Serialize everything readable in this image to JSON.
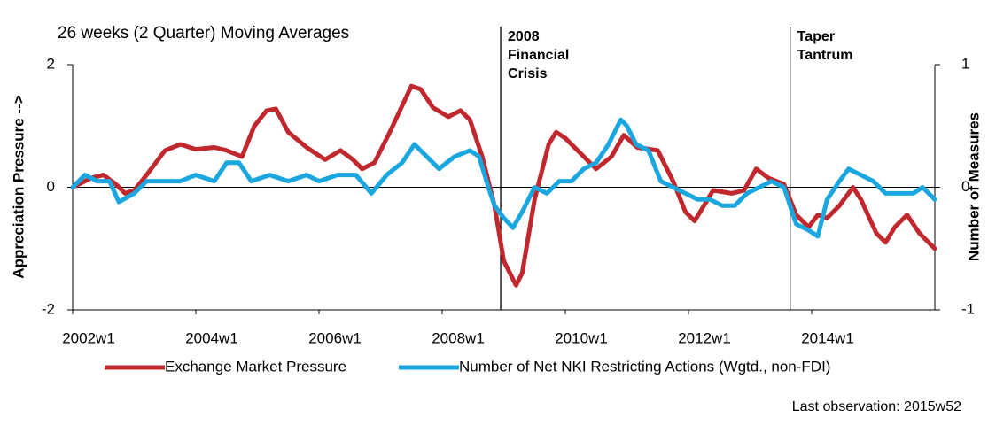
{
  "chart_data": {
    "type": "line",
    "title": "26 weeks (2 Quarter) Moving Averages",
    "y_label": "Appreciation Pressure -->",
    "y2_label": "Number of Measures",
    "note": "Last observation: 2015w52",
    "xlim": [
      2002,
      2016
    ],
    "xticks": [
      {
        "value": 2002,
        "label": "2002w1"
      },
      {
        "value": 2004,
        "label": "2004w1"
      },
      {
        "value": 2006,
        "label": "2006w1"
      },
      {
        "value": 2008,
        "label": "2008w1"
      },
      {
        "value": 2010,
        "label": "2010w1"
      },
      {
        "value": 2012,
        "label": "2012w1"
      },
      {
        "value": 2014,
        "label": "2014w1"
      }
    ],
    "ylim": [
      -2,
      2
    ],
    "yticks": [
      -2,
      0,
      2
    ],
    "y2lim": [
      -1,
      1
    ],
    "y2ticks": [
      -1,
      0,
      1
    ],
    "annotations": [
      {
        "x": 2008.95,
        "lines": [
          "2008",
          "Financial",
          "Crisis"
        ]
      },
      {
        "x": 2013.65,
        "lines": [
          "Taper",
          "Tantrum"
        ]
      }
    ],
    "series": [
      {
        "name": "Exchange Market Pressure",
        "color": "#c0282d",
        "x": [
          2002.0,
          2002.3,
          2002.5,
          2002.7,
          2002.85,
          2003.0,
          2003.2,
          2003.5,
          2003.75,
          2004.0,
          2004.3,
          2004.5,
          2004.75,
          2004.95,
          2005.15,
          2005.3,
          2005.5,
          2005.8,
          2006.1,
          2006.35,
          2006.55,
          2006.7,
          2006.9,
          2007.15,
          2007.5,
          2007.65,
          2007.85,
          2008.1,
          2008.3,
          2008.45,
          2008.65,
          2008.85,
          2009.0,
          2009.2,
          2009.3,
          2009.5,
          2009.73,
          2009.85,
          2010.0,
          2010.3,
          2010.5,
          2010.75,
          2010.95,
          2011.17,
          2011.5,
          2011.75,
          2011.95,
          2012.1,
          2012.25,
          2012.4,
          2012.7,
          2012.9,
          2013.1,
          2013.3,
          2013.55,
          2013.75,
          2013.95,
          2014.1,
          2014.25,
          2014.45,
          2014.67,
          2014.8,
          2015.05,
          2015.2,
          2015.35,
          2015.55,
          2015.75,
          2016.0
        ],
        "values": [
          0,
          0.15,
          0.2,
          0.05,
          -0.1,
          -0.05,
          0.2,
          0.6,
          0.7,
          0.62,
          0.65,
          0.6,
          0.5,
          1.0,
          1.25,
          1.28,
          0.9,
          0.65,
          0.45,
          0.6,
          0.45,
          0.3,
          0.4,
          0.9,
          1.65,
          1.6,
          1.3,
          1.15,
          1.25,
          1.1,
          0.5,
          -0.3,
          -1.2,
          -1.6,
          -1.4,
          -0.2,
          0.7,
          0.9,
          0.8,
          0.5,
          0.3,
          0.5,
          0.85,
          0.65,
          0.6,
          0.1,
          -0.4,
          -0.55,
          -0.3,
          -0.05,
          -0.1,
          -0.05,
          0.3,
          0.15,
          0.05,
          -0.45,
          -0.65,
          -0.45,
          -0.5,
          -0.3,
          0.0,
          -0.2,
          -0.75,
          -0.9,
          -0.65,
          -0.45,
          -0.75,
          -1.0
        ]
      },
      {
        "name": "Number of Net NKI Restricting Actions  (Wgtd., non-FDI)",
        "color": "#1aa6df",
        "axis": "y2",
        "x": [
          2002.0,
          2002.2,
          2002.4,
          2002.6,
          2002.75,
          2003.0,
          2003.2,
          2003.5,
          2003.75,
          2004.0,
          2004.3,
          2004.5,
          2004.7,
          2004.9,
          2005.2,
          2005.5,
          2005.8,
          2006.0,
          2006.3,
          2006.6,
          2006.85,
          2007.1,
          2007.35,
          2007.55,
          2007.75,
          2007.95,
          2008.2,
          2008.45,
          2008.6,
          2008.75,
          2008.85,
          2009.0,
          2009.15,
          2009.3,
          2009.5,
          2009.7,
          2009.9,
          2010.1,
          2010.3,
          2010.5,
          2010.7,
          2010.9,
          2011.0,
          2011.15,
          2011.35,
          2011.55,
          2011.75,
          2011.95,
          2012.15,
          2012.35,
          2012.55,
          2012.75,
          2012.95,
          2013.15,
          2013.35,
          2013.55,
          2013.75,
          2013.95,
          2014.1,
          2014.25,
          2014.45,
          2014.6,
          2014.8,
          2015.0,
          2015.2,
          2015.45,
          2015.65,
          2015.8,
          2016.0
        ],
        "values": [
          0,
          0.1,
          0.05,
          0.05,
          -0.12,
          -0.05,
          0.05,
          0.05,
          0.05,
          0.1,
          0.05,
          0.2,
          0.2,
          0.05,
          0.1,
          0.05,
          0.1,
          0.05,
          0.1,
          0.1,
          -0.05,
          0.1,
          0.2,
          0.35,
          0.25,
          0.15,
          0.25,
          0.3,
          0.25,
          0.0,
          -0.15,
          -0.25,
          -0.33,
          -0.2,
          0.0,
          -0.05,
          0.05,
          0.05,
          0.15,
          0.2,
          0.35,
          0.55,
          0.5,
          0.35,
          0.3,
          0.05,
          0.0,
          -0.05,
          -0.1,
          -0.1,
          -0.15,
          -0.15,
          -0.05,
          0.0,
          0.05,
          0.0,
          -0.3,
          -0.35,
          -0.4,
          -0.1,
          0.05,
          0.15,
          0.1,
          0.05,
          -0.05,
          -0.05,
          -0.05,
          0.0,
          -0.1
        ]
      }
    ]
  }
}
